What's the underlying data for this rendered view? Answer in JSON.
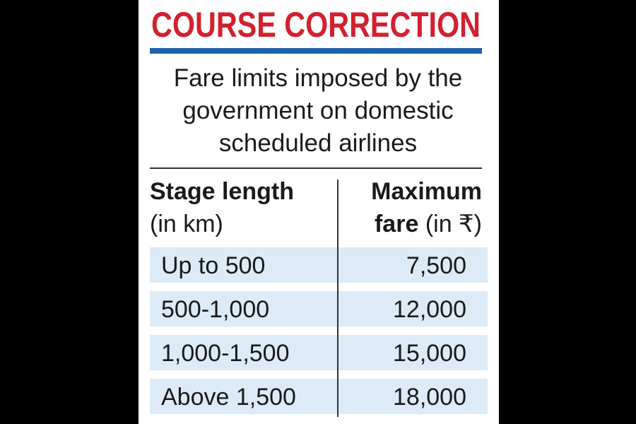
{
  "header": {
    "title": "COURSE CORRECTION",
    "subtitle": [
      "Fare limits imposed by the",
      "government on domestic",
      "scheduled airlines"
    ]
  },
  "table": {
    "columns": [
      {
        "lines": [
          "Stage length",
          "(in km)"
        ]
      },
      {
        "lines": [
          "Maximum",
          "fare",
          "(in ₹)"
        ]
      }
    ],
    "rows": [
      [
        "Up to 500",
        "7,500"
      ],
      [
        "500-1,000",
        "12,000"
      ],
      [
        "1,000-1,500",
        "15,000"
      ],
      [
        "Above 1,500",
        "18,000"
      ]
    ]
  }
}
